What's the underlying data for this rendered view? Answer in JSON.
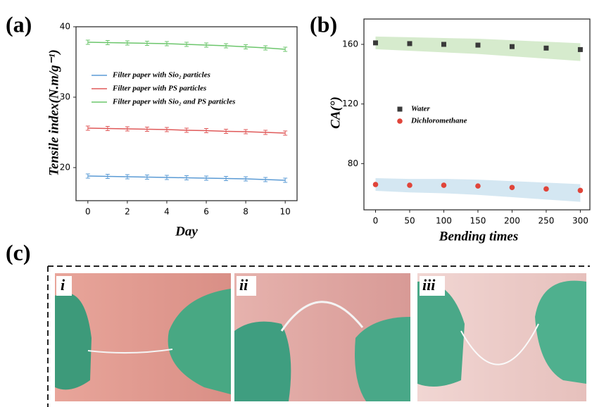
{
  "chart_data": [
    {
      "type": "line",
      "panel_label": "(a)",
      "x_label": "Day",
      "y_label": "Tensile index(N.m/g⁻¹)",
      "x": [
        0,
        1,
        2,
        3,
        4,
        5,
        6,
        7,
        8,
        9,
        10
      ],
      "xlim": [
        -0.6,
        10.6
      ],
      "xticks": [
        0,
        2,
        4,
        6,
        8,
        10
      ],
      "ylim": [
        15.3,
        40
      ],
      "yticks": [
        20,
        30,
        40
      ],
      "series": [
        {
          "name": "Filter paper with Sio₂ particles",
          "color": "#5b9bd5",
          "values": [
            18.8,
            18.75,
            18.7,
            18.65,
            18.6,
            18.55,
            18.5,
            18.45,
            18.4,
            18.3,
            18.2
          ],
          "errors": [
            0.3,
            0.3,
            0.3,
            0.3,
            0.3,
            0.3,
            0.3,
            0.3,
            0.3,
            0.3,
            0.3
          ]
        },
        {
          "name": "Filter paper with PS particles",
          "color": "#e05a5a",
          "values": [
            25.6,
            25.55,
            25.5,
            25.45,
            25.4,
            25.3,
            25.25,
            25.15,
            25.1,
            25.0,
            24.9
          ],
          "errors": [
            0.3,
            0.3,
            0.3,
            0.3,
            0.3,
            0.3,
            0.3,
            0.3,
            0.3,
            0.3,
            0.3
          ]
        },
        {
          "name": "Filter paper with Sio₂ and PS particles",
          "color": "#6cc66c",
          "values": [
            37.8,
            37.75,
            37.7,
            37.65,
            37.6,
            37.5,
            37.4,
            37.3,
            37.15,
            37.0,
            36.8
          ],
          "errors": [
            0.3,
            0.3,
            0.3,
            0.3,
            0.3,
            0.3,
            0.3,
            0.3,
            0.3,
            0.3,
            0.3
          ]
        }
      ]
    },
    {
      "type": "scatter",
      "panel_label": "(b)",
      "x_label": "Bending times",
      "y_label": "CA(°)",
      "x": [
        0,
        50,
        100,
        150,
        200,
        250,
        300
      ],
      "xlim": [
        -17,
        314
      ],
      "xticks": [
        0,
        50,
        100,
        150,
        200,
        250,
        300
      ],
      "ylim": [
        49,
        177
      ],
      "yticks": [
        80,
        120,
        160
      ],
      "series": [
        {
          "name": "Water",
          "color": "#3a3a3a",
          "marker": "square",
          "band_color": "#cfe8c4",
          "values": [
            161,
            160.5,
            160,
            159.5,
            158.5,
            157.5,
            156.5
          ]
        },
        {
          "name": "Dichloromethane",
          "color": "#e0453a",
          "marker": "circle",
          "band_color": "#cde3f0",
          "values": [
            66,
            65.5,
            65.5,
            65,
            64,
            63,
            62
          ]
        }
      ]
    }
  ],
  "photos": {
    "panel_label": "(c)",
    "labels": [
      "i",
      "ii",
      "iii"
    ]
  }
}
